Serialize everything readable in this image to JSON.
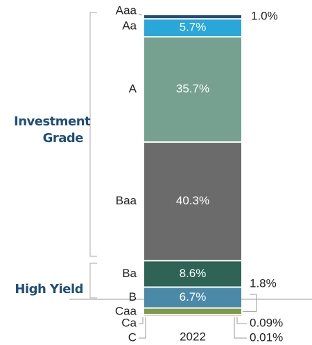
{
  "chart_data": {
    "type": "stacked-bar",
    "categories": [
      "2022"
    ],
    "groups": [
      {
        "name": "Investment Grade",
        "series": [
          {
            "name": "Aaa",
            "color": "#2b4a6e",
            "values": [
              1.0
            ],
            "value_labels": [
              "1.0%"
            ]
          },
          {
            "name": "Aa",
            "color": "#2aa7d9",
            "values": [
              5.7
            ],
            "value_labels": [
              "5.7%"
            ]
          },
          {
            "name": "A",
            "color": "#76a090",
            "values": [
              35.7
            ],
            "value_labels": [
              "35.7%"
            ]
          },
          {
            "name": "Baa",
            "color": "#6b6b6b",
            "values": [
              40.3
            ],
            "value_labels": [
              "40.3%"
            ]
          }
        ]
      },
      {
        "name": "High Yield",
        "series": [
          {
            "name": "Ba",
            "color": "#2e6355",
            "values": [
              8.6
            ],
            "value_labels": [
              "8.6%"
            ]
          },
          {
            "name": "B",
            "color": "#4b89a8",
            "values": [
              6.7
            ],
            "value_labels": [
              "6.7%"
            ]
          },
          {
            "name": "Caa",
            "color": "#7d9a48",
            "values": [
              1.8
            ],
            "value_labels": [
              "1.8%"
            ]
          },
          {
            "name": "Ca",
            "color": "#7d9a48",
            "values": [
              0.09
            ],
            "value_labels": [
              "0.09%"
            ]
          },
          {
            "name": "C",
            "color": "#7d9a48",
            "values": [
              0.01
            ],
            "value_labels": [
              "0.01%"
            ]
          }
        ]
      }
    ]
  }
}
